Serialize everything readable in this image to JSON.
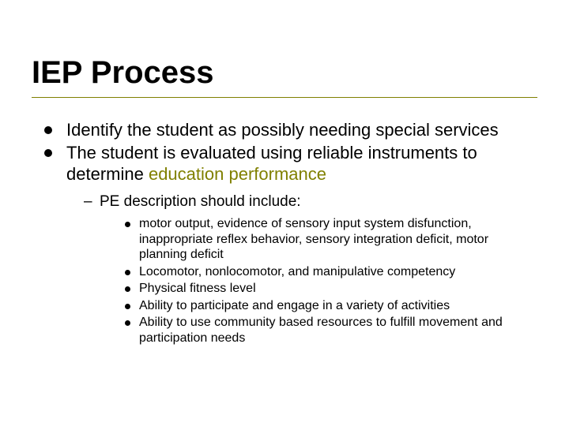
{
  "colors": {
    "background": "#ffffff",
    "text": "#000000",
    "accent": "#808000",
    "rule": "#808000"
  },
  "typography": {
    "title_fontsize": 40,
    "title_weight": "bold",
    "level1_fontsize": 22,
    "level2_fontsize": 19,
    "level3_fontsize": 16,
    "font_family": "Arial"
  },
  "title": "IEP Process",
  "bullets": {
    "b1": "Identify the student as possibly needing special services",
    "b2_pre": "The student is evaluated using reliable instruments to determine ",
    "b2_highlight": "education performance",
    "b2_sub1": "PE description should include:",
    "b2_sub1_items": {
      "i1": "motor output, evidence of sensory input system disfunction, inappropriate reflex behavior, sensory integration deficit, motor planning deficit",
      "i2": "Locomotor, nonlocomotor, and manipulative competency",
      "i3": "Physical fitness level",
      "i4": "Ability to participate and engage in a variety of activities",
      "i5": "Ability to use community based resources to fulfill movement and participation needs"
    }
  }
}
